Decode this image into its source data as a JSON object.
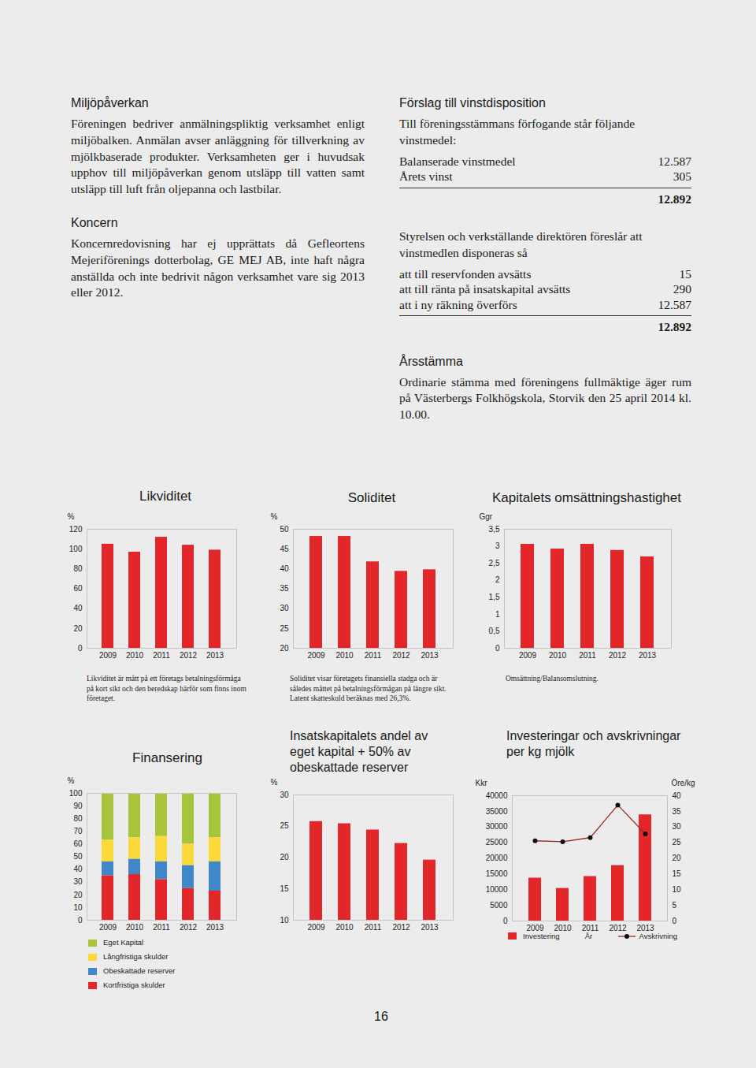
{
  "page": {
    "number": "16"
  },
  "left_column": [
    {
      "heading": "Miljöpåverkan",
      "paragraph": "Föreningen bedriver anmälningspliktig verksamhet enligt miljöbalken. Anmälan avser anläggning för tillverkning av mjölkbaserade produkter. Verksamheten ger i huvudsak upphov till miljöpåverkan genom utsläpp till vatten samt utsläpp till luft från oljepanna och lastbilar."
    },
    {
      "heading": "Koncern",
      "paragraph": "Koncernredovisning har ej upprättats då Gefleortens Mejeriförenings dotterbolag, GE MEJ AB, inte haft några anställda och inte bedrivit någon verksamhet vare sig 2013 eller 2012."
    }
  ],
  "vinstdisposition": {
    "heading": "Förslag till vinstdisposition",
    "blocks": [
      {
        "text": "Till föreningsstämmans förfogande står följande vinstmedel:",
        "rows": [
          [
            "Balanserade vinstmedel",
            "12.587"
          ],
          [
            "Årets vinst",
            "305"
          ]
        ],
        "total": "12.892"
      },
      {
        "text": "Styrelsen och verkställande direktören föreslår att vinstmedlen disponeras så",
        "rows": [
          [
            "att till reservfonden avsätts",
            "15"
          ],
          [
            "att till ränta på insatskapital avsätts",
            "290"
          ],
          [
            "att i ny räkning överförs",
            "12.587"
          ]
        ],
        "total": "12.892"
      }
    ]
  },
  "arsstamma": {
    "heading": "Årsstämma",
    "paragraph": "Ordinarie stämma med föreningens fullmäktige äger rum på Västerbergs Folkhögskola, Storvik den 25 april 2014 kl. 10.00."
  },
  "chart_data": [
    {
      "type": "bar",
      "title": "Likviditet",
      "categories": [
        "2009",
        "2010",
        "2011",
        "2012",
        "2013"
      ],
      "values": [
        105,
        97,
        112,
        104,
        99
      ],
      "color": "#e2262a",
      "ylabel": "%",
      "ylim": [
        0,
        120
      ],
      "yticks": [
        0,
        20,
        40,
        60,
        80,
        100,
        120
      ],
      "grid": false,
      "caption": "Likviditet är mått på ett företags betalningsförmåga på kort sikt och den beredskap härför som finns inom företaget."
    },
    {
      "type": "bar",
      "title": "Soliditet",
      "categories": [
        "2009",
        "2010",
        "2011",
        "2012",
        "2013"
      ],
      "values": [
        48.2,
        48.2,
        41.8,
        39.4,
        39.8
      ],
      "color": "#e2262a",
      "ylabel": "%",
      "ylim": [
        20,
        50
      ],
      "yticks": [
        20,
        25,
        30,
        35,
        40,
        45,
        50
      ],
      "grid": false,
      "caption": "Soliditet visar företagets finansiella stadga och är således måttet på betalningsförmågan på längre sikt. Latent skatteskuld beräknas med 26,3%."
    },
    {
      "type": "bar",
      "title": "Kapitalets omsättningshastighet",
      "categories": [
        "2009",
        "2010",
        "2011",
        "2012",
        "2013"
      ],
      "values": [
        3.06,
        2.92,
        3.06,
        2.88,
        2.69
      ],
      "color": "#e2262a",
      "ylabel": "Ggr",
      "ylim": [
        0,
        3.5
      ],
      "yticks": [
        0,
        {
          "value": 0.5,
          "label": "0,5"
        },
        1,
        {
          "value": 1.5,
          "label": "1,5"
        },
        2,
        {
          "value": 2.5,
          "label": "2,5"
        },
        3,
        {
          "value": 3.5,
          "label": "3,5"
        }
      ],
      "grid": false,
      "caption": "Omsättning/Balansomslutning."
    },
    {
      "type": "bar",
      "title": "Finansering",
      "stacked": true,
      "categories": [
        "2009",
        "2010",
        "2011",
        "2012",
        "2013"
      ],
      "series": [
        {
          "name": "Eget Kapital",
          "color": "#a8c43d",
          "values": [
            37,
            35,
            34,
            40,
            35
          ]
        },
        {
          "name": "Långfristiga skulder",
          "color": "#fcd93b",
          "values": [
            17,
            17,
            20,
            17,
            19
          ]
        },
        {
          "name": "Obeskattade reserver",
          "color": "#3f87c8",
          "values": [
            11,
            12,
            14,
            18,
            23
          ]
        },
        {
          "name": "Kortfristiga skulder",
          "color": "#e2262a",
          "values": [
            35,
            36,
            32,
            25,
            23
          ]
        }
      ],
      "ylabel": "%",
      "ylim": [
        0,
        100
      ],
      "yticks": [
        0,
        10,
        20,
        30,
        40,
        50,
        60,
        70,
        80,
        90,
        100
      ],
      "grid": false,
      "legend": "bottom"
    },
    {
      "type": "bar",
      "title": "Insatskapitalets andel av eget kapital + 50% av obeskattade reserver",
      "categories": [
        "2009",
        "2010",
        "2011",
        "2012",
        "2013"
      ],
      "values": [
        25.75,
        25.4,
        24.4,
        22.25,
        19.6
      ],
      "color": "#e2262a",
      "ylabel": "%",
      "ylim": [
        10,
        30
      ],
      "yticks": [
        10,
        15,
        20,
        25,
        30
      ],
      "grid": false
    },
    {
      "type": "bar",
      "title": "Investeringar och avskrivningar per kg mjölk",
      "categories": [
        "2009",
        "2010",
        "2011",
        "2012",
        "2013"
      ],
      "xlabel": "År",
      "ylabel": "Kkr",
      "ylim": [
        0,
        40000
      ],
      "yticks": [
        0,
        5000,
        10000,
        15000,
        20000,
        25000,
        30000,
        35000,
        40000
      ],
      "y2label": "Öre/kg",
      "y2lim": [
        0,
        40
      ],
      "y2ticks": [
        0,
        5,
        10,
        15,
        20,
        25,
        30,
        35,
        40
      ],
      "series": [
        {
          "name": "Investering",
          "type": "bar",
          "color": "#e2262a",
          "values": [
            13700,
            10400,
            14200,
            17700,
            33900
          ]
        },
        {
          "name": "Avskrivning",
          "type": "line",
          "axis": "y2",
          "color": "#9e2a24",
          "marker": "circle",
          "values": [
            25.6,
            25.3,
            26.6,
            37.0,
            27.8
          ]
        }
      ],
      "grid": false,
      "legend": "bottom"
    }
  ]
}
